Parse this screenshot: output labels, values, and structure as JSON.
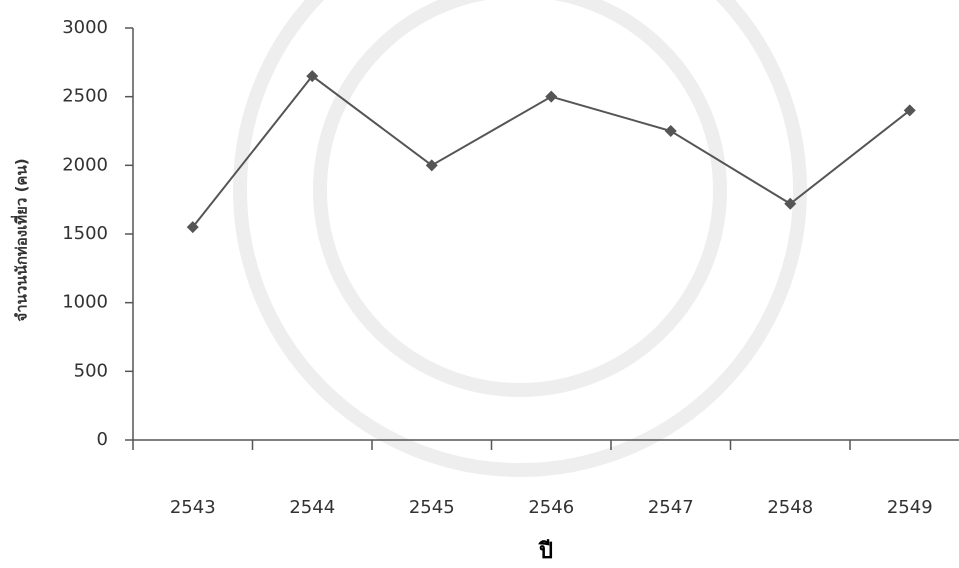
{
  "chart_data": {
    "type": "line",
    "y_label": "จำนวนนักท่องเที่ยว (คน)",
    "x_label": "ปี",
    "categories": [
      "2543",
      "2544",
      "2545",
      "2546",
      "2547",
      "2548",
      "2549"
    ],
    "series": [
      {
        "color": "#555555",
        "values": [
          1550,
          2650,
          2000,
          2500,
          2250,
          1720,
          2400
        ]
      }
    ],
    "ylim": [
      0,
      3000
    ],
    "yticks": [
      0,
      500,
      1000,
      1500,
      2000,
      2500,
      3000
    ],
    "grid": false
  }
}
